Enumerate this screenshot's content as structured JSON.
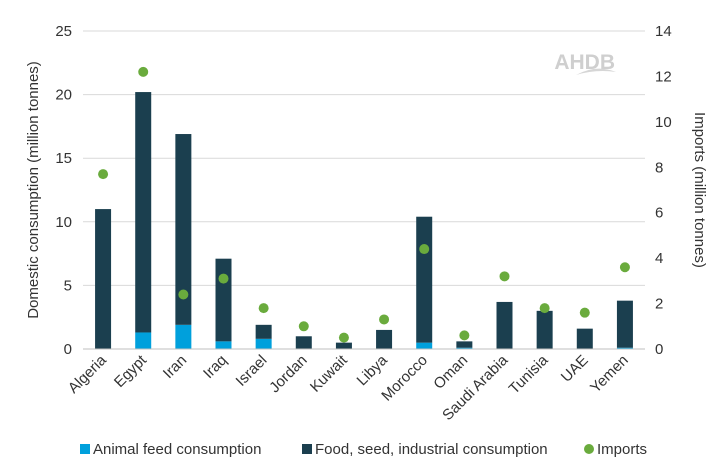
{
  "chart_data": {
    "type": "bar",
    "stacked": true,
    "categories": [
      "Algeria",
      "Egypt",
      "Iran",
      "Iraq",
      "Israel",
      "Jordan",
      "Kuwait",
      "Libya",
      "Morocco",
      "Oman",
      "Saudi Arabia",
      "Tunisia",
      "UAE",
      "Yemen"
    ],
    "series": [
      {
        "name": "Animal feed consumption",
        "type": "bar",
        "axis": "left",
        "color": "#00a0dc",
        "values": [
          0.0,
          1.3,
          1.9,
          0.6,
          0.8,
          0.0,
          0.0,
          0.0,
          0.5,
          0.1,
          0.0,
          0.0,
          0.0,
          0.1
        ]
      },
      {
        "name": "Food, seed, industrial consumption",
        "type": "bar",
        "axis": "left",
        "color": "#1b3f4f",
        "values": [
          11.0,
          18.9,
          15.0,
          6.5,
          1.1,
          1.0,
          0.5,
          1.5,
          9.9,
          0.5,
          3.7,
          3.0,
          1.6,
          3.7
        ]
      },
      {
        "name": "Imports",
        "type": "scatter",
        "axis": "right",
        "color": "#6aab3d",
        "values": [
          7.7,
          12.2,
          2.4,
          3.1,
          1.8,
          1.0,
          0.5,
          1.3,
          4.4,
          0.6,
          3.2,
          1.8,
          1.6,
          3.6
        ]
      }
    ],
    "ylabel": "Domestic consumption (million tonnes)",
    "y2label": "Imports (million tonnes)",
    "ylim": [
      0,
      25
    ],
    "yticks": [
      "0",
      "5",
      "10",
      "15",
      "20",
      "25"
    ],
    "y2lim": [
      0,
      14
    ],
    "y2ticks": [
      "0",
      "2",
      "4",
      "6",
      "8",
      "10",
      "12",
      "14"
    ],
    "grid": "horizontal",
    "legend_position": "bottom",
    "watermark": "AHDB"
  }
}
